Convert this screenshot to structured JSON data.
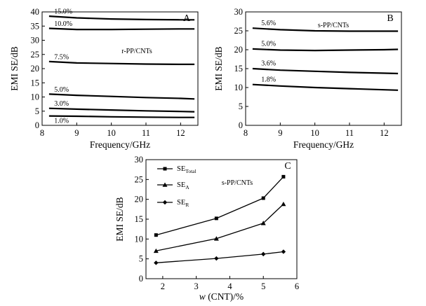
{
  "chart_data": [
    {
      "panel": "A",
      "type": "line",
      "annotation": "r-PP/CNTs",
      "xlabel": "Frequency/GHz",
      "ylabel": "EMI SE/dB",
      "xlim": [
        8,
        12.5
      ],
      "ylim": [
        0,
        40
      ],
      "xticks": [
        8,
        9,
        10,
        11,
        12
      ],
      "yticks": [
        0,
        5,
        10,
        15,
        20,
        25,
        30,
        35,
        40
      ],
      "series": [
        {
          "name": "15.0%",
          "x": [
            8.2,
            9,
            10,
            11,
            12,
            12.4
          ],
          "y": [
            38.5,
            37.9,
            37.5,
            37.3,
            37.2,
            37.2
          ]
        },
        {
          "name": "10.0%",
          "x": [
            8.2,
            9,
            10,
            11,
            12,
            12.4
          ],
          "y": [
            34.2,
            33.8,
            33.8,
            33.9,
            34.0,
            34.0
          ]
        },
        {
          "name": "7.5%",
          "x": [
            8.2,
            9,
            10,
            11,
            12,
            12.4
          ],
          "y": [
            22.5,
            22.0,
            21.8,
            21.6,
            21.5,
            21.5
          ]
        },
        {
          "name": "5.0%",
          "x": [
            8.2,
            9,
            10,
            11,
            12,
            12.4
          ],
          "y": [
            11.0,
            10.6,
            10.2,
            9.8,
            9.5,
            9.3
          ]
        },
        {
          "name": "3.0%",
          "x": [
            8.2,
            9,
            10,
            11,
            12,
            12.4
          ],
          "y": [
            6.0,
            5.7,
            5.4,
            5.1,
            4.9,
            4.8
          ]
        },
        {
          "name": "1.0%",
          "x": [
            8.2,
            9,
            10,
            11,
            12,
            12.4
          ],
          "y": [
            3.3,
            3.2,
            3.0,
            2.9,
            2.8,
            2.8
          ]
        }
      ]
    },
    {
      "panel": "B",
      "type": "line",
      "annotation": "s-PP/CNTs",
      "xlabel": "Frequency/GHz",
      "ylabel": "EMI SE/dB",
      "xlim": [
        8,
        12.5
      ],
      "ylim": [
        0,
        30
      ],
      "xticks": [
        8,
        9,
        10,
        11,
        12
      ],
      "yticks": [
        0,
        5,
        10,
        15,
        20,
        25,
        30
      ],
      "series": [
        {
          "name": "5.6%",
          "x": [
            8.2,
            9,
            10,
            11,
            12,
            12.4
          ],
          "y": [
            25.7,
            25.3,
            25.0,
            24.9,
            24.9,
            24.9
          ]
        },
        {
          "name": "5.0%",
          "x": [
            8.2,
            9,
            10,
            11,
            12,
            12.4
          ],
          "y": [
            20.2,
            19.9,
            19.8,
            19.9,
            20.0,
            20.1
          ]
        },
        {
          "name": "3.6%",
          "x": [
            8.2,
            9,
            10,
            11,
            12,
            12.4
          ],
          "y": [
            15.0,
            14.6,
            14.3,
            14.0,
            13.8,
            13.7
          ]
        },
        {
          "name": "1.8%",
          "x": [
            8.2,
            9,
            10,
            11,
            12,
            12.4
          ],
          "y": [
            10.8,
            10.4,
            10.0,
            9.7,
            9.4,
            9.3
          ]
        }
      ]
    },
    {
      "panel": "C",
      "type": "line",
      "annotation": "s-PP/CNTs",
      "xlabel_italic": "w",
      "xlabel_rest": " (CNT)/%",
      "ylabel": "EMI SE/dB",
      "xlim": [
        1.5,
        6
      ],
      "ylim": [
        0,
        30
      ],
      "xticks": [
        2,
        3,
        4,
        5,
        6
      ],
      "yticks": [
        0,
        5,
        10,
        15,
        20,
        25,
        30
      ],
      "series": [
        {
          "name": "SE",
          "sub": "Total",
          "marker": "square",
          "x": [
            1.8,
            3.6,
            5.0,
            5.6
          ],
          "y": [
            11.0,
            15.2,
            20.3,
            25.7
          ]
        },
        {
          "name": "SE",
          "sub": "A",
          "marker": "triangle",
          "x": [
            1.8,
            3.6,
            5.0,
            5.6
          ],
          "y": [
            7.0,
            10.1,
            14.0,
            18.8
          ]
        },
        {
          "name": "SE",
          "sub": "R",
          "marker": "diamond",
          "x": [
            1.8,
            3.6,
            5.0,
            5.6
          ],
          "y": [
            4.0,
            5.1,
            6.2,
            6.8
          ]
        }
      ]
    }
  ]
}
